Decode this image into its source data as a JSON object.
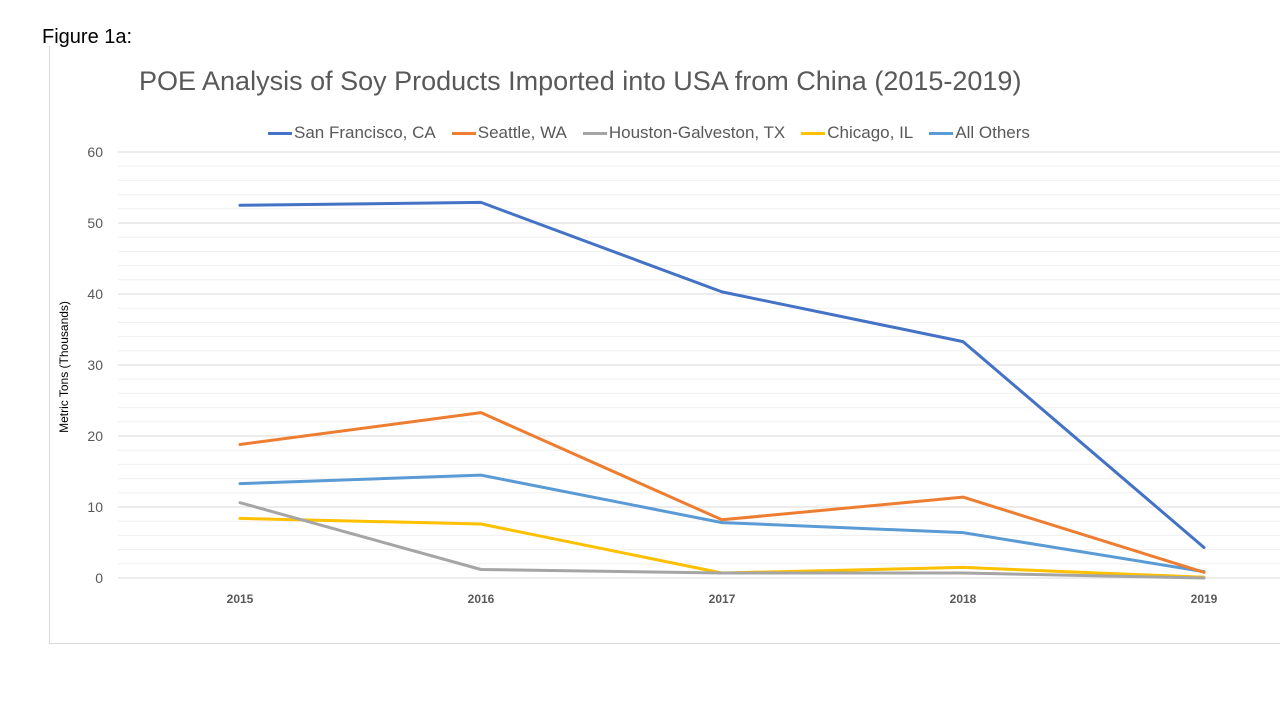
{
  "figure_label": "Figure 1a:",
  "colors": {
    "San Francisco, CA": "#4472c4",
    "Seattle, WA": "#ed7d31",
    "Houston-Galveston, TX": "#a5a5a5",
    "Chicago, IL": "#ffc000",
    "All Others": "#5b9bd5",
    "gridline_major": "#d9d9d9",
    "gridline_minor": "#f0f0f0"
  },
  "chart_data": {
    "type": "line",
    "title": "POE Analysis of Soy Products Imported into USA from China (2015-2019)",
    "xlabel": "",
    "ylabel": "Metric Tons (Thousands)",
    "categories": [
      "2015",
      "2016",
      "2017",
      "2018",
      "2019"
    ],
    "ylim": [
      0,
      60
    ],
    "yticks": [
      0,
      10,
      20,
      30,
      40,
      50,
      60
    ],
    "grid": true,
    "legend_position": "top",
    "series": [
      {
        "name": "San Francisco, CA",
        "values": [
          52.5,
          52.9,
          40.3,
          33.3,
          4.3
        ]
      },
      {
        "name": "Seattle, WA",
        "values": [
          18.8,
          23.3,
          8.2,
          11.4,
          0.8
        ]
      },
      {
        "name": "Houston-Galveston, TX",
        "values": [
          10.6,
          1.2,
          0.7,
          0.7,
          0.0
        ]
      },
      {
        "name": "Chicago, IL",
        "values": [
          8.4,
          7.6,
          0.7,
          1.5,
          0.1
        ]
      },
      {
        "name": "All Others",
        "values": [
          13.3,
          14.5,
          7.8,
          6.4,
          0.9
        ]
      }
    ]
  }
}
